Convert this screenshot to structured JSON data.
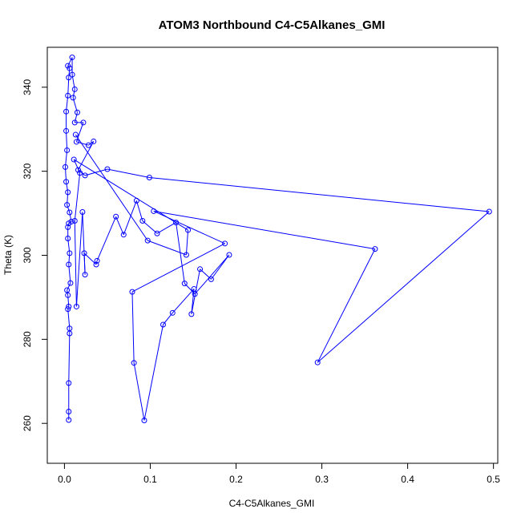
{
  "chart_data": {
    "type": "line",
    "title": "ATOM3 Northbound C4-C5Alkanes_GMI",
    "xlabel": "C4-C5Alkanes_GMI",
    "ylabel": "Theta (K)",
    "xlim": [
      -0.02,
      0.505
    ],
    "ylim": [
      250.5,
      349.5
    ],
    "x_ticks": [
      0.0,
      0.1,
      0.2,
      0.3,
      0.4,
      0.5
    ],
    "x_tick_labels": [
      "0.0",
      "0.1",
      "0.2",
      "0.3",
      "0.4",
      "0.5"
    ],
    "y_ticks": [
      260,
      280,
      300,
      320,
      340
    ],
    "y_tick_labels": [
      "260",
      "280",
      "300",
      "320",
      "340"
    ],
    "grid": false,
    "color": "#0000ff",
    "marker": "open-circle",
    "series": [
      {
        "values": [
          [
            0.005,
            260.8
          ],
          [
            0.005,
            262.8
          ],
          [
            0.005,
            269.6
          ],
          [
            0.006,
            281.4
          ],
          [
            0.006,
            282.6
          ],
          [
            0.004,
            287.2
          ],
          [
            0.005,
            287.8
          ],
          [
            0.004,
            290.5
          ],
          [
            0.003,
            291.7
          ],
          [
            0.007,
            293.4
          ],
          [
            0.005,
            297.8
          ],
          [
            0.006,
            300.5
          ],
          [
            0.004,
            304.0
          ],
          [
            0.004,
            306.7
          ],
          [
            0.005,
            307.6
          ],
          [
            0.008,
            308.0
          ],
          [
            0.006,
            310.2
          ],
          [
            0.003,
            312.0
          ],
          [
            0.004,
            315.0
          ],
          [
            0.002,
            317.5
          ],
          [
            0.001,
            321.0
          ],
          [
            0.003,
            325.0
          ],
          [
            0.002,
            329.6
          ],
          [
            0.002,
            334.2
          ],
          [
            0.004,
            338.0
          ],
          [
            0.005,
            342.3
          ],
          [
            0.006,
            344.5
          ],
          [
            0.004,
            345.1
          ],
          [
            0.009,
            347.1
          ],
          [
            0.009,
            343.0
          ],
          [
            0.012,
            339.5
          ],
          [
            0.01,
            337.5
          ],
          [
            0.015,
            334.0
          ],
          [
            0.012,
            331.6
          ],
          [
            0.022,
            331.6
          ],
          [
            0.014,
            327.0
          ],
          [
            0.028,
            326.2
          ],
          [
            0.034,
            327.1
          ],
          [
            0.016,
            320.3
          ],
          [
            0.024,
            319.0
          ],
          [
            0.05,
            320.5
          ],
          [
            0.099,
            318.5
          ],
          [
            0.495,
            310.4
          ],
          [
            0.295,
            274.5
          ],
          [
            0.362,
            301.5
          ],
          [
            0.104,
            310.5
          ],
          [
            0.187,
            302.8
          ],
          [
            0.079,
            291.3
          ],
          [
            0.081,
            274.4
          ],
          [
            0.093,
            260.7
          ],
          [
            0.115,
            283.5
          ],
          [
            0.126,
            286.3
          ],
          [
            0.151,
            292.0
          ],
          [
            0.148,
            286.0
          ],
          [
            0.158,
            296.7
          ],
          [
            0.171,
            294.3
          ],
          [
            0.192,
            300.1
          ],
          [
            0.152,
            290.8
          ],
          [
            0.14,
            293.3
          ],
          [
            0.13,
            307.8
          ],
          [
            0.108,
            305.2
          ],
          [
            0.091,
            308.2
          ],
          [
            0.084,
            313.0
          ],
          [
            0.069,
            304.9
          ],
          [
            0.06,
            309.2
          ],
          [
            0.038,
            298.7
          ],
          [
            0.037,
            297.8
          ],
          [
            0.023,
            300.5
          ],
          [
            0.024,
            295.4
          ],
          [
            0.021,
            310.3
          ],
          [
            0.014,
            287.8
          ],
          [
            0.012,
            308.2
          ],
          [
            0.018,
            319.6
          ],
          [
            0.011,
            322.8
          ],
          [
            0.144,
            306.0
          ],
          [
            0.142,
            300.1
          ],
          [
            0.097,
            303.5
          ],
          [
            0.013,
            328.7
          ]
        ]
      }
    ]
  }
}
